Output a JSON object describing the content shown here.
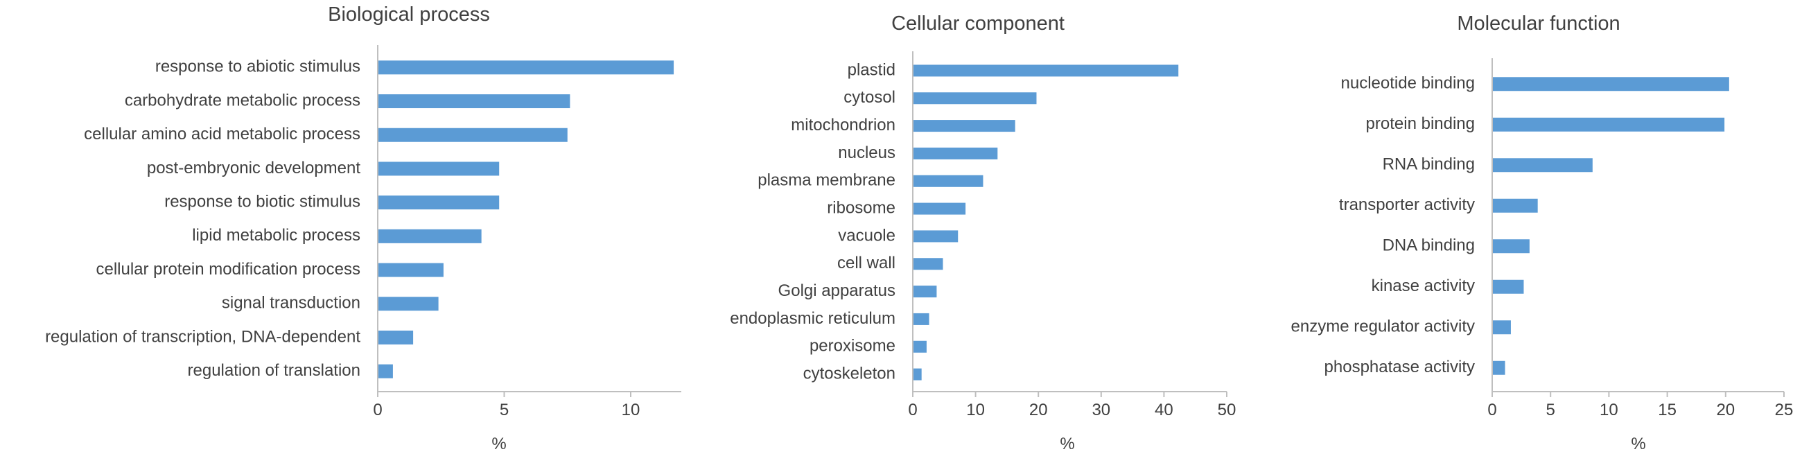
{
  "colors": {
    "bar": "#5b9bd5",
    "axis": "#bfbfbf",
    "text": "#404040"
  },
  "chart_data": [
    {
      "type": "bar",
      "orientation": "horizontal",
      "title": "Biological process",
      "xlabel": "%",
      "xlim": [
        0,
        12
      ],
      "xticks": [
        0,
        5,
        10
      ],
      "grid": false,
      "categories": [
        "response to abiotic stimulus",
        "carbohydrate metabolic process",
        "cellular amino acid metabolic process",
        "post-embryonic development",
        "response to biotic stimulus",
        "lipid metabolic process",
        "cellular protein modification process",
        "signal transduction",
        "regulation of transcription, DNA-dependent",
        "regulation of translation"
      ],
      "values": [
        11.7,
        7.6,
        7.5,
        4.8,
        4.8,
        4.1,
        2.6,
        2.4,
        1.4,
        0.6
      ]
    },
    {
      "type": "bar",
      "orientation": "horizontal",
      "title": "Cellular component",
      "xlabel": "%",
      "xlim": [
        0,
        50
      ],
      "xticks": [
        0,
        10,
        20,
        30,
        40,
        50
      ],
      "grid": false,
      "categories": [
        "plastid",
        "cytosol",
        "mitochondrion",
        "nucleus",
        "plasma membrane",
        "ribosome",
        "vacuole",
        "cell wall",
        "Golgi apparatus",
        "endoplasmic reticulum",
        "peroxisome",
        "cytoskeleton"
      ],
      "values": [
        42.3,
        19.7,
        16.3,
        13.5,
        11.2,
        8.4,
        7.2,
        4.8,
        3.8,
        2.6,
        2.2,
        1.4
      ]
    },
    {
      "type": "bar",
      "orientation": "horizontal",
      "title": "Molecular function",
      "xlabel": "%",
      "xlim": [
        0,
        25
      ],
      "xticks": [
        0,
        5,
        10,
        15,
        20,
        25
      ],
      "grid": false,
      "categories": [
        "nucleotide binding",
        "protein binding",
        "RNA binding",
        "transporter activity",
        "DNA binding",
        "kinase activity",
        "enzyme regulator activity",
        "phosphatase activity"
      ],
      "values": [
        20.3,
        19.9,
        8.6,
        3.9,
        3.2,
        2.7,
        1.6,
        1.1
      ]
    }
  ]
}
